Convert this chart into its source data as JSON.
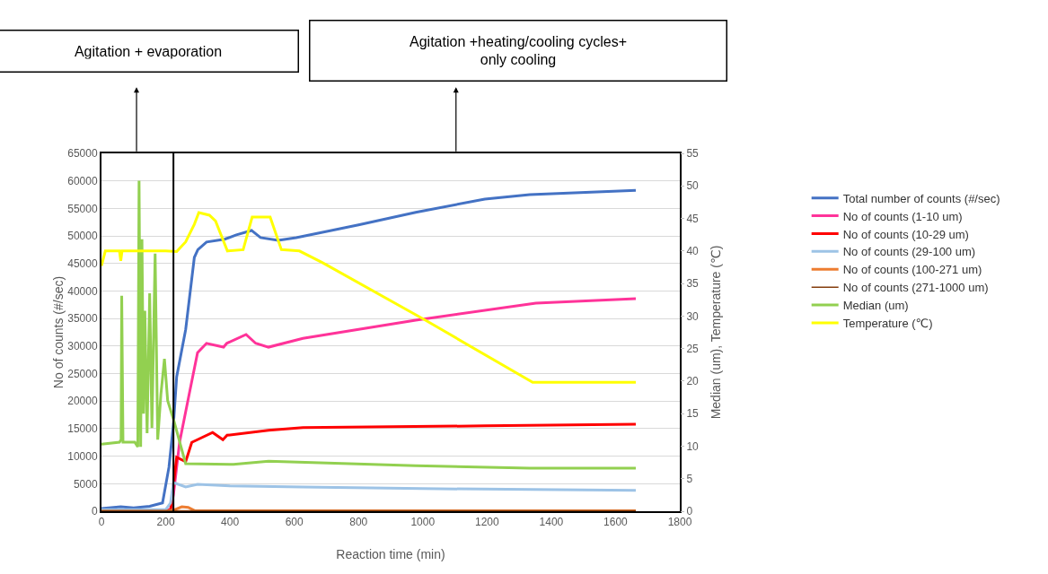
{
  "chart_data": {
    "type": "line",
    "xlabel": "Reaction time (min)",
    "ylabel": "No of counts (#/sec)",
    "y2label": "Median (um), Temperature (℃)",
    "annotations": [
      "Agitation + evaporation",
      "Agitation +heating/cooling cycles+\nonly cooling"
    ],
    "xlim": [
      0,
      1800
    ],
    "xticks": [
      0,
      200,
      400,
      600,
      800,
      1000,
      1200,
      1400,
      1600,
      1800
    ],
    "ylim": [
      0,
      65000
    ],
    "yticks": [
      0,
      5000,
      10000,
      15000,
      20000,
      25000,
      30000,
      35000,
      40000,
      45000,
      50000,
      55000,
      60000,
      65000
    ],
    "y2lim": [
      0,
      55
    ],
    "y2ticks": [
      0,
      5,
      10,
      15,
      20,
      25,
      30,
      35,
      40,
      45,
      50,
      55
    ],
    "grid": "y",
    "legend": "right",
    "marker": "none",
    "line_style": "solid",
    "ref_lines": [
      {
        "axis": "x",
        "value": 224,
        "color": "#000000"
      }
    ],
    "series": [
      {
        "name": "Total number of counts (#/sec)",
        "color": "#4472c4",
        "x": [
          0,
          60,
          100,
          150,
          190,
          210,
          224,
          234,
          262,
          289,
          300,
          327,
          383,
          420,
          467,
          495,
          550,
          606,
          800,
          978,
          1193,
          1333,
          1663
        ],
        "values": [
          500,
          800,
          600,
          900,
          1500,
          8000,
          15800,
          24400,
          33000,
          46100,
          47500,
          48900,
          49400,
          50200,
          51000,
          49700,
          49200,
          49700,
          52000,
          54300,
          56700,
          57500,
          58300
        ]
      },
      {
        "name": "No of counts (1-10 um)",
        "color": "#ff3399",
        "x": [
          0,
          215,
          224,
          243,
          271,
          299,
          327,
          380,
          390,
          450,
          480,
          520,
          627,
          978,
          1352,
          1663
        ],
        "values": [
          200,
          300,
          3000,
          12500,
          20700,
          28800,
          30500,
          29800,
          30500,
          32100,
          30500,
          29800,
          31400,
          34700,
          37800,
          38600
        ]
      },
      {
        "name": "No of counts (10-29 um)",
        "color": "#ff0000",
        "x": [
          0,
          215,
          234,
          262,
          281,
          346,
          378,
          391,
          520,
          627,
          1193,
          1663
        ],
        "values": [
          100,
          200,
          9800,
          9000,
          12500,
          14300,
          13000,
          13800,
          14700,
          15200,
          15500,
          15800
        ]
      },
      {
        "name": "No of counts (29-100 um)",
        "color": "#9dc3e6",
        "x": [
          0,
          200,
          215,
          224,
          262,
          299,
          400,
          627,
          1000,
          1663
        ],
        "values": [
          300,
          300,
          1500,
          5200,
          4400,
          4900,
          4600,
          4400,
          4100,
          3800
        ]
      },
      {
        "name": "No of counts (100-271 um)",
        "color": "#ed7d31",
        "x": [
          0,
          200,
          224,
          250,
          270,
          290,
          1663
        ],
        "values": [
          0,
          0,
          200,
          800,
          700,
          100,
          100
        ]
      },
      {
        "name": "No of counts (271-1000 um)",
        "color": "#843c0c",
        "x": [
          0,
          1663
        ],
        "values": [
          100,
          100
        ]
      },
      {
        "name": "Median (um)",
        "color": "#92d050",
        "axis": "y2",
        "x": [
          0,
          56,
          61,
          63,
          67,
          104,
          113,
          117,
          122,
          126,
          131,
          135,
          142,
          150,
          157,
          167,
          175,
          185,
          196,
          206,
          226,
          262,
          411,
          520,
          978,
          1333,
          1663
        ],
        "values": [
          10.3,
          10.6,
          11,
          33.1,
          10.6,
          10.6,
          9.9,
          50.8,
          9.9,
          41.8,
          15,
          30.8,
          12,
          33.5,
          12.8,
          39.6,
          11,
          18,
          23.4,
          17,
          13.8,
          7.3,
          7.2,
          7.7,
          7.0,
          6.6,
          6.6
        ]
      },
      {
        "name": "Temperature (℃)",
        "color": "#ffff00",
        "axis": "y2",
        "x": [
          0,
          12,
          56,
          60,
          64,
          200,
          234,
          262,
          289,
          303,
          336,
          355,
          392,
          441,
          469,
          525,
          560,
          616,
          688,
          1007,
          1342,
          1663
        ],
        "values": [
          37.7,
          40,
          40,
          38.5,
          40,
          40,
          39.9,
          41.4,
          44.1,
          45.9,
          45.5,
          44.6,
          40,
          40.2,
          45.2,
          45.2,
          40.2,
          40,
          38.2,
          29.4,
          19.8,
          19.8
        ]
      }
    ]
  }
}
